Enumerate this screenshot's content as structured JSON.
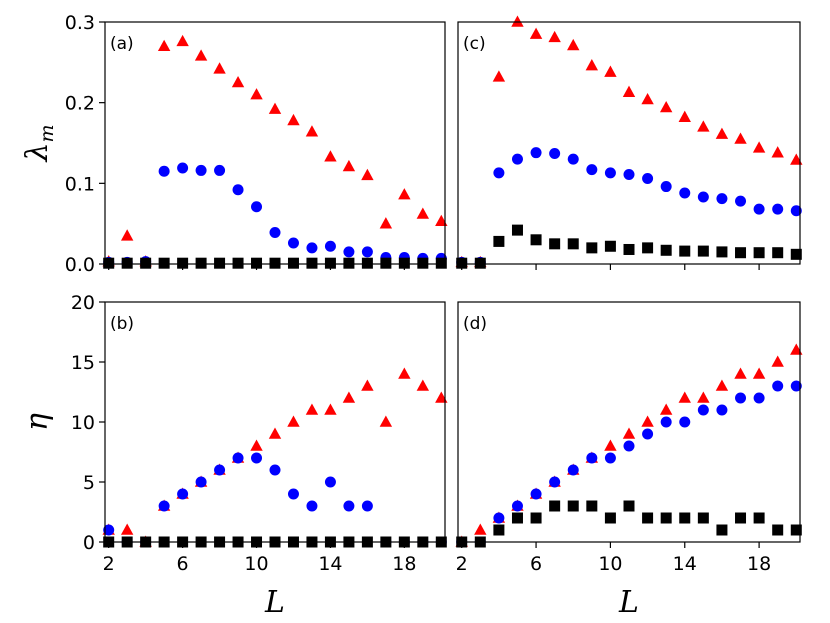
{
  "chart_data": [
    {
      "id": "a",
      "type": "scatter",
      "panel_label": "(a)",
      "xlim": [
        1.8,
        20.2
      ],
      "ylim": [
        0,
        0.3
      ],
      "xticks": [
        2,
        6,
        10,
        14,
        18
      ],
      "yticks": [
        0.0,
        0.1,
        0.2,
        0.3
      ],
      "ytick_labels": [
        "0.0",
        "0.1",
        "0.2",
        "0.3"
      ],
      "ylabel": "λ",
      "ylabel_sub": "m",
      "series": [
        {
          "name": "triangles",
          "marker": "triangle",
          "color": "#ff0000",
          "x": [
            2,
            3,
            4,
            5,
            6,
            7,
            8,
            9,
            10,
            11,
            12,
            13,
            14,
            15,
            16,
            17,
            18,
            19,
            20
          ],
          "y": [
            0.003,
            0.035,
            0.003,
            0.27,
            0.276,
            0.258,
            0.242,
            0.225,
            0.21,
            0.192,
            0.178,
            0.164,
            0.133,
            0.121,
            0.11,
            0.05,
            0.086,
            0.062,
            0.053
          ]
        },
        {
          "name": "circles",
          "marker": "circle",
          "color": "#0000ff",
          "x": [
            2,
            3,
            4,
            5,
            6,
            7,
            8,
            9,
            10,
            11,
            12,
            13,
            14,
            15,
            16,
            17,
            18,
            19,
            20
          ],
          "y": [
            0.002,
            0.002,
            0.003,
            0.115,
            0.119,
            0.116,
            0.116,
            0.092,
            0.071,
            0.039,
            0.026,
            0.02,
            0.022,
            0.015,
            0.015,
            0.008,
            0.008,
            0.007,
            0.007
          ]
        },
        {
          "name": "squares",
          "marker": "square",
          "color": "#000000",
          "x": [
            2,
            3,
            4,
            5,
            6,
            7,
            8,
            9,
            10,
            11,
            12,
            13,
            14,
            15,
            16,
            17,
            18,
            19,
            20
          ],
          "y": [
            0.001,
            0.001,
            0.001,
            0.001,
            0.001,
            0.001,
            0.001,
            0.001,
            0.001,
            0.001,
            0.001,
            0.001,
            0.001,
            0.001,
            0.001,
            0.001,
            0.001,
            0.001,
            0.001
          ]
        }
      ]
    },
    {
      "id": "c",
      "type": "scatter",
      "panel_label": "(c)",
      "xlim": [
        1.8,
        20.2
      ],
      "ylim": [
        0,
        0.3
      ],
      "xticks": [
        2,
        6,
        10,
        14,
        18
      ],
      "yticks": [],
      "series": [
        {
          "name": "triangles",
          "marker": "triangle",
          "color": "#ff0000",
          "x": [
            2,
            3,
            4,
            5,
            6,
            7,
            8,
            9,
            10,
            11,
            12,
            13,
            14,
            15,
            16,
            17,
            18,
            19,
            20
          ],
          "y": [
            0.002,
            0.002,
            0.232,
            0.3,
            0.285,
            0.281,
            0.271,
            0.246,
            0.238,
            0.213,
            0.204,
            0.194,
            0.182,
            0.17,
            0.161,
            0.155,
            0.144,
            0.138,
            0.129
          ]
        },
        {
          "name": "circles",
          "marker": "circle",
          "color": "#0000ff",
          "x": [
            2,
            3,
            4,
            5,
            6,
            7,
            8,
            9,
            10,
            11,
            12,
            13,
            14,
            15,
            16,
            17,
            18,
            19,
            20
          ],
          "y": [
            0.002,
            0.002,
            0.113,
            0.13,
            0.138,
            0.137,
            0.13,
            0.117,
            0.113,
            0.111,
            0.106,
            0.096,
            0.088,
            0.083,
            0.081,
            0.078,
            0.068,
            0.068,
            0.066
          ]
        },
        {
          "name": "squares",
          "marker": "square",
          "color": "#000000",
          "x": [
            2,
            3,
            4,
            5,
            6,
            7,
            8,
            9,
            10,
            11,
            12,
            13,
            14,
            15,
            16,
            17,
            18,
            19,
            20
          ],
          "y": [
            0.001,
            0.001,
            0.028,
            0.042,
            0.03,
            0.025,
            0.025,
            0.02,
            0.022,
            0.018,
            0.02,
            0.017,
            0.016,
            0.016,
            0.015,
            0.014,
            0.014,
            0.014,
            0.012
          ]
        }
      ]
    },
    {
      "id": "b",
      "type": "scatter",
      "panel_label": "(b)",
      "xlim": [
        1.8,
        20.2
      ],
      "ylim": [
        0,
        20
      ],
      "xticks": [
        2,
        6,
        10,
        14,
        18
      ],
      "yticks": [
        0,
        5,
        10,
        15,
        20
      ],
      "ytick_labels": [
        "0",
        "5",
        "10",
        "15",
        "20"
      ],
      "xtick_labels": [
        "2",
        "6",
        "10",
        "14",
        "18"
      ],
      "xlabel": "L",
      "ylabel": "η",
      "series": [
        {
          "name": "triangles",
          "marker": "triangle",
          "color": "#ff0000",
          "x": [
            2,
            3,
            4,
            5,
            6,
            7,
            8,
            9,
            10,
            11,
            12,
            13,
            14,
            15,
            16,
            17,
            18,
            19,
            20
          ],
          "y": [
            1,
            1,
            0,
            3,
            4,
            5,
            6,
            7,
            8,
            9,
            10,
            11,
            11,
            12,
            13,
            10,
            14,
            13,
            12
          ]
        },
        {
          "name": "circles",
          "marker": "circle",
          "color": "#0000ff",
          "x": [
            2,
            3,
            4,
            5,
            6,
            7,
            8,
            9,
            10,
            11,
            12,
            13,
            14,
            15,
            16,
            17,
            18,
            19,
            20
          ],
          "y": [
            1,
            0,
            0,
            3,
            4,
            5,
            6,
            7,
            7,
            6,
            4,
            3,
            5,
            3,
            3,
            0,
            0,
            0,
            0
          ]
        },
        {
          "name": "squares",
          "marker": "square",
          "color": "#000000",
          "x": [
            2,
            3,
            4,
            5,
            6,
            7,
            8,
            9,
            10,
            11,
            12,
            13,
            14,
            15,
            16,
            17,
            18,
            19,
            20
          ],
          "y": [
            0,
            0,
            0,
            0,
            0,
            0,
            0,
            0,
            0,
            0,
            0,
            0,
            0,
            0,
            0,
            0,
            0,
            0,
            0
          ]
        }
      ]
    },
    {
      "id": "d",
      "type": "scatter",
      "panel_label": "(d)",
      "xlim": [
        1.8,
        20.2
      ],
      "ylim": [
        0,
        20
      ],
      "xticks": [
        2,
        6,
        10,
        14,
        18
      ],
      "yticks": [],
      "xtick_labels": [
        "2",
        "6",
        "10",
        "14",
        "18"
      ],
      "xlabel": "L",
      "series": [
        {
          "name": "triangles",
          "marker": "triangle",
          "color": "#ff0000",
          "x": [
            2,
            3,
            4,
            5,
            6,
            7,
            8,
            9,
            10,
            11,
            12,
            13,
            14,
            15,
            16,
            17,
            18,
            19,
            20
          ],
          "y": [
            0,
            1,
            2,
            3,
            4,
            5,
            6,
            7,
            8,
            9,
            10,
            11,
            12,
            12,
            13,
            14,
            14,
            15,
            16
          ]
        },
        {
          "name": "circles",
          "marker": "circle",
          "color": "#0000ff",
          "x": [
            2,
            3,
            4,
            5,
            6,
            7,
            8,
            9,
            10,
            11,
            12,
            13,
            14,
            15,
            16,
            17,
            18,
            19,
            20
          ],
          "y": [
            0,
            0,
            2,
            3,
            4,
            5,
            6,
            7,
            7,
            8,
            9,
            10,
            10,
            11,
            11,
            12,
            12,
            13,
            13
          ]
        },
        {
          "name": "squares",
          "marker": "square",
          "color": "#000000",
          "x": [
            2,
            3,
            4,
            5,
            6,
            7,
            8,
            9,
            10,
            11,
            12,
            13,
            14,
            15,
            16,
            17,
            18,
            19,
            20
          ],
          "y": [
            0,
            0,
            1,
            2,
            2,
            3,
            3,
            3,
            2,
            3,
            2,
            2,
            2,
            2,
            1,
            2,
            2,
            1,
            1
          ]
        }
      ]
    }
  ]
}
